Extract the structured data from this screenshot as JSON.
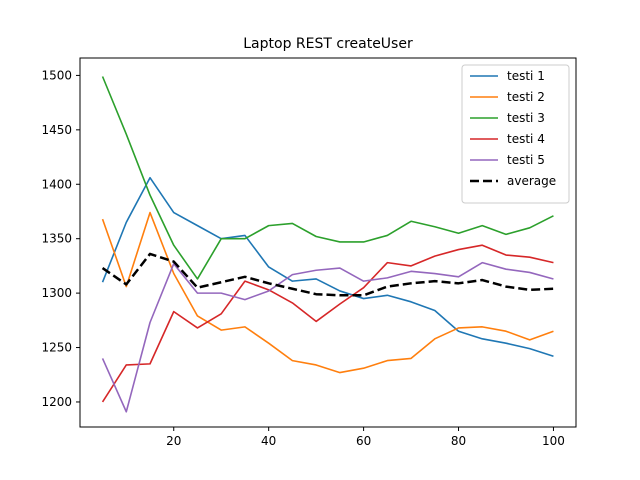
{
  "chart_data": {
    "type": "line",
    "title": "Laptop REST createUser",
    "xlabel": "",
    "ylabel": "",
    "xlim": [
      0.25,
      104.75
    ],
    "ylim": [
      1177,
      1516
    ],
    "xticks": [
      20,
      40,
      60,
      80,
      100
    ],
    "yticks": [
      1200,
      1250,
      1300,
      1350,
      1400,
      1450,
      1500
    ],
    "legend_position": "top-right",
    "grid": false,
    "x": [
      5,
      10,
      15,
      20,
      25,
      30,
      35,
      40,
      45,
      50,
      55,
      60,
      65,
      70,
      75,
      80,
      85,
      90,
      95,
      100
    ],
    "series": [
      {
        "name": "testi 1",
        "color": "#1f77b4",
        "dash": "solid",
        "values": [
          1310,
          1365,
          1406,
          1374,
          1362,
          1350,
          1353,
          1324,
          1311,
          1313,
          1302,
          1295,
          1298,
          1292,
          1284,
          1265,
          1258,
          1254,
          1249,
          1242
        ]
      },
      {
        "name": "testi 2",
        "color": "#ff7f0e",
        "dash": "solid",
        "values": [
          1368,
          1306,
          1374,
          1318,
          1279,
          1266,
          1269,
          1254,
          1238,
          1234,
          1227,
          1231,
          1238,
          1240,
          1258,
          1268,
          1269,
          1265,
          1257,
          1265
        ]
      },
      {
        "name": "testi 3",
        "color": "#2ca02c",
        "dash": "solid",
        "values": [
          1499,
          1446,
          1390,
          1344,
          1313,
          1350,
          1350,
          1362,
          1364,
          1352,
          1347,
          1347,
          1353,
          1366,
          1361,
          1355,
          1362,
          1354,
          1360,
          1371
        ]
      },
      {
        "name": "testi 4",
        "color": "#d62728",
        "dash": "solid",
        "values": [
          1200,
          1234,
          1235,
          1283,
          1268,
          1281,
          1311,
          1303,
          1291,
          1274,
          1290,
          1305,
          1328,
          1325,
          1334,
          1340,
          1344,
          1335,
          1333,
          1328
        ]
      },
      {
        "name": "testi 5",
        "color": "#9467bd",
        "dash": "solid",
        "values": [
          1240,
          1191,
          1273,
          1327,
          1300,
          1300,
          1294,
          1302,
          1317,
          1321,
          1323,
          1311,
          1314,
          1320,
          1318,
          1315,
          1328,
          1322,
          1319,
          1313
        ]
      },
      {
        "name": "average",
        "color": "#000000",
        "dash": "dashed",
        "values": [
          1323,
          1308,
          1336,
          1329,
          1305,
          1310,
          1315,
          1309,
          1304,
          1299,
          1298,
          1298,
          1306,
          1309,
          1311,
          1309,
          1312,
          1306,
          1303,
          1304
        ]
      }
    ]
  }
}
